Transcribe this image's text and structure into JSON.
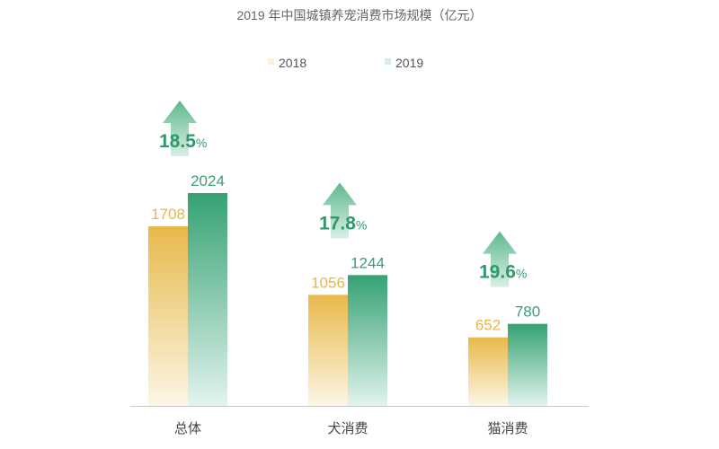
{
  "chart_data": {
    "type": "bar",
    "title": "2019 年中国城镇养宠消费市场规模（亿元）",
    "categories": [
      "总体",
      "犬消费",
      "猫消费"
    ],
    "series": [
      {
        "name": "2018",
        "values": [
          1708,
          1056,
          652
        ],
        "color": "#e8b94a"
      },
      {
        "name": "2019",
        "values": [
          2024,
          1244,
          780
        ],
        "color": "#3aa57a"
      }
    ],
    "growth": [
      "18.5",
      "17.8",
      "19.6"
    ],
    "growth_unit": "%",
    "legend_position": "top",
    "grid": false,
    "ylim": [
      0,
      2100
    ]
  }
}
